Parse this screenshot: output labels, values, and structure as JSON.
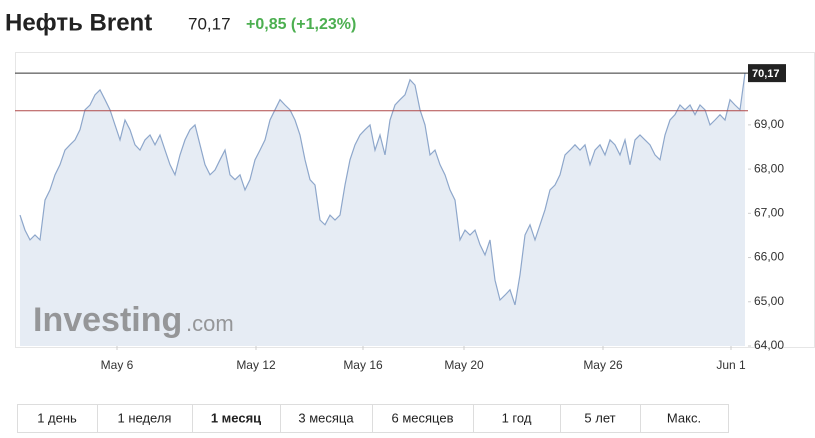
{
  "header": {
    "title": "Нефть Brent",
    "price": "70,17",
    "change": "+0,85 (+1,23%)"
  },
  "chart_data": {
    "type": "line",
    "series": [
      {
        "name": "Brent",
        "color": "#8ea7cb",
        "values": [
          66.96,
          66.62,
          66.4,
          66.51,
          66.4,
          67.3,
          67.53,
          67.87,
          68.1,
          68.43,
          68.55,
          68.66,
          68.89,
          69.34,
          69.45,
          69.68,
          69.79,
          69.57,
          69.34,
          69.0,
          68.66,
          69.11,
          68.89,
          68.55,
          68.43,
          68.66,
          68.77,
          68.55,
          68.77,
          68.43,
          68.1,
          67.87,
          68.32,
          68.66,
          68.89,
          69.0,
          68.55,
          68.1,
          67.87,
          67.98,
          68.21,
          68.43,
          67.87,
          67.76,
          67.87,
          67.53,
          67.76,
          68.21,
          68.43,
          68.66,
          69.11,
          69.34,
          69.57,
          69.45,
          69.34,
          69.11,
          68.77,
          68.21,
          67.76,
          67.64,
          66.85,
          66.74,
          66.96,
          66.85,
          66.96,
          67.64,
          68.21,
          68.55,
          68.77,
          68.89,
          69.0,
          68.43,
          68.77,
          68.32,
          69.11,
          69.45,
          69.57,
          69.68,
          70.02,
          69.9,
          69.34,
          69.0,
          68.32,
          68.43,
          68.1,
          67.87,
          67.53,
          67.3,
          66.4,
          66.62,
          66.51,
          66.62,
          66.29,
          66.06,
          66.4,
          65.49,
          65.04,
          65.15,
          65.27,
          64.93,
          65.61,
          66.51,
          66.74,
          66.4,
          66.74,
          67.08,
          67.53,
          67.64,
          67.87,
          68.32,
          68.43,
          68.55,
          68.43,
          68.55,
          68.1,
          68.43,
          68.55,
          68.32,
          68.66,
          68.55,
          68.32,
          68.66,
          68.1,
          68.66,
          68.77,
          68.66,
          68.55,
          68.32,
          68.21,
          68.77,
          69.11,
          69.23,
          69.45,
          69.34,
          69.45,
          69.23,
          69.45,
          69.34,
          69.0,
          69.11,
          69.23,
          69.11,
          69.57,
          69.45,
          69.34,
          70.17
        ]
      }
    ],
    "previous_close": 69.32,
    "last_value_label": "70,17",
    "xlim": [
      -1,
      145.6
    ],
    "xticks": [
      {
        "value": 19.4,
        "label": "May 6"
      },
      {
        "value": 47.2,
        "label": "May 12"
      },
      {
        "value": 68.6,
        "label": "May 16"
      },
      {
        "value": 88.8,
        "label": "May 20"
      },
      {
        "value": 116.6,
        "label": "May 26"
      },
      {
        "value": 142.2,
        "label": "Jun 1"
      }
    ],
    "ylim": [
      64,
      70.58
    ],
    "yticks": [
      {
        "value": 64,
        "label": "64,00"
      },
      {
        "value": 65,
        "label": "65,00"
      },
      {
        "value": 66,
        "label": "66,00"
      },
      {
        "value": 67,
        "label": "67,00"
      },
      {
        "value": 68,
        "label": "68,00"
      },
      {
        "value": 69,
        "label": "69,00"
      }
    ],
    "watermark": "Investing",
    "watermark_suffix": ".com"
  },
  "tabs": [
    "1 день",
    "1 неделя",
    "1 месяц",
    "3 месяца",
    "6 месяцев",
    "1 год",
    "5 лет",
    "Макс."
  ],
  "active_tab": "1 месяц"
}
